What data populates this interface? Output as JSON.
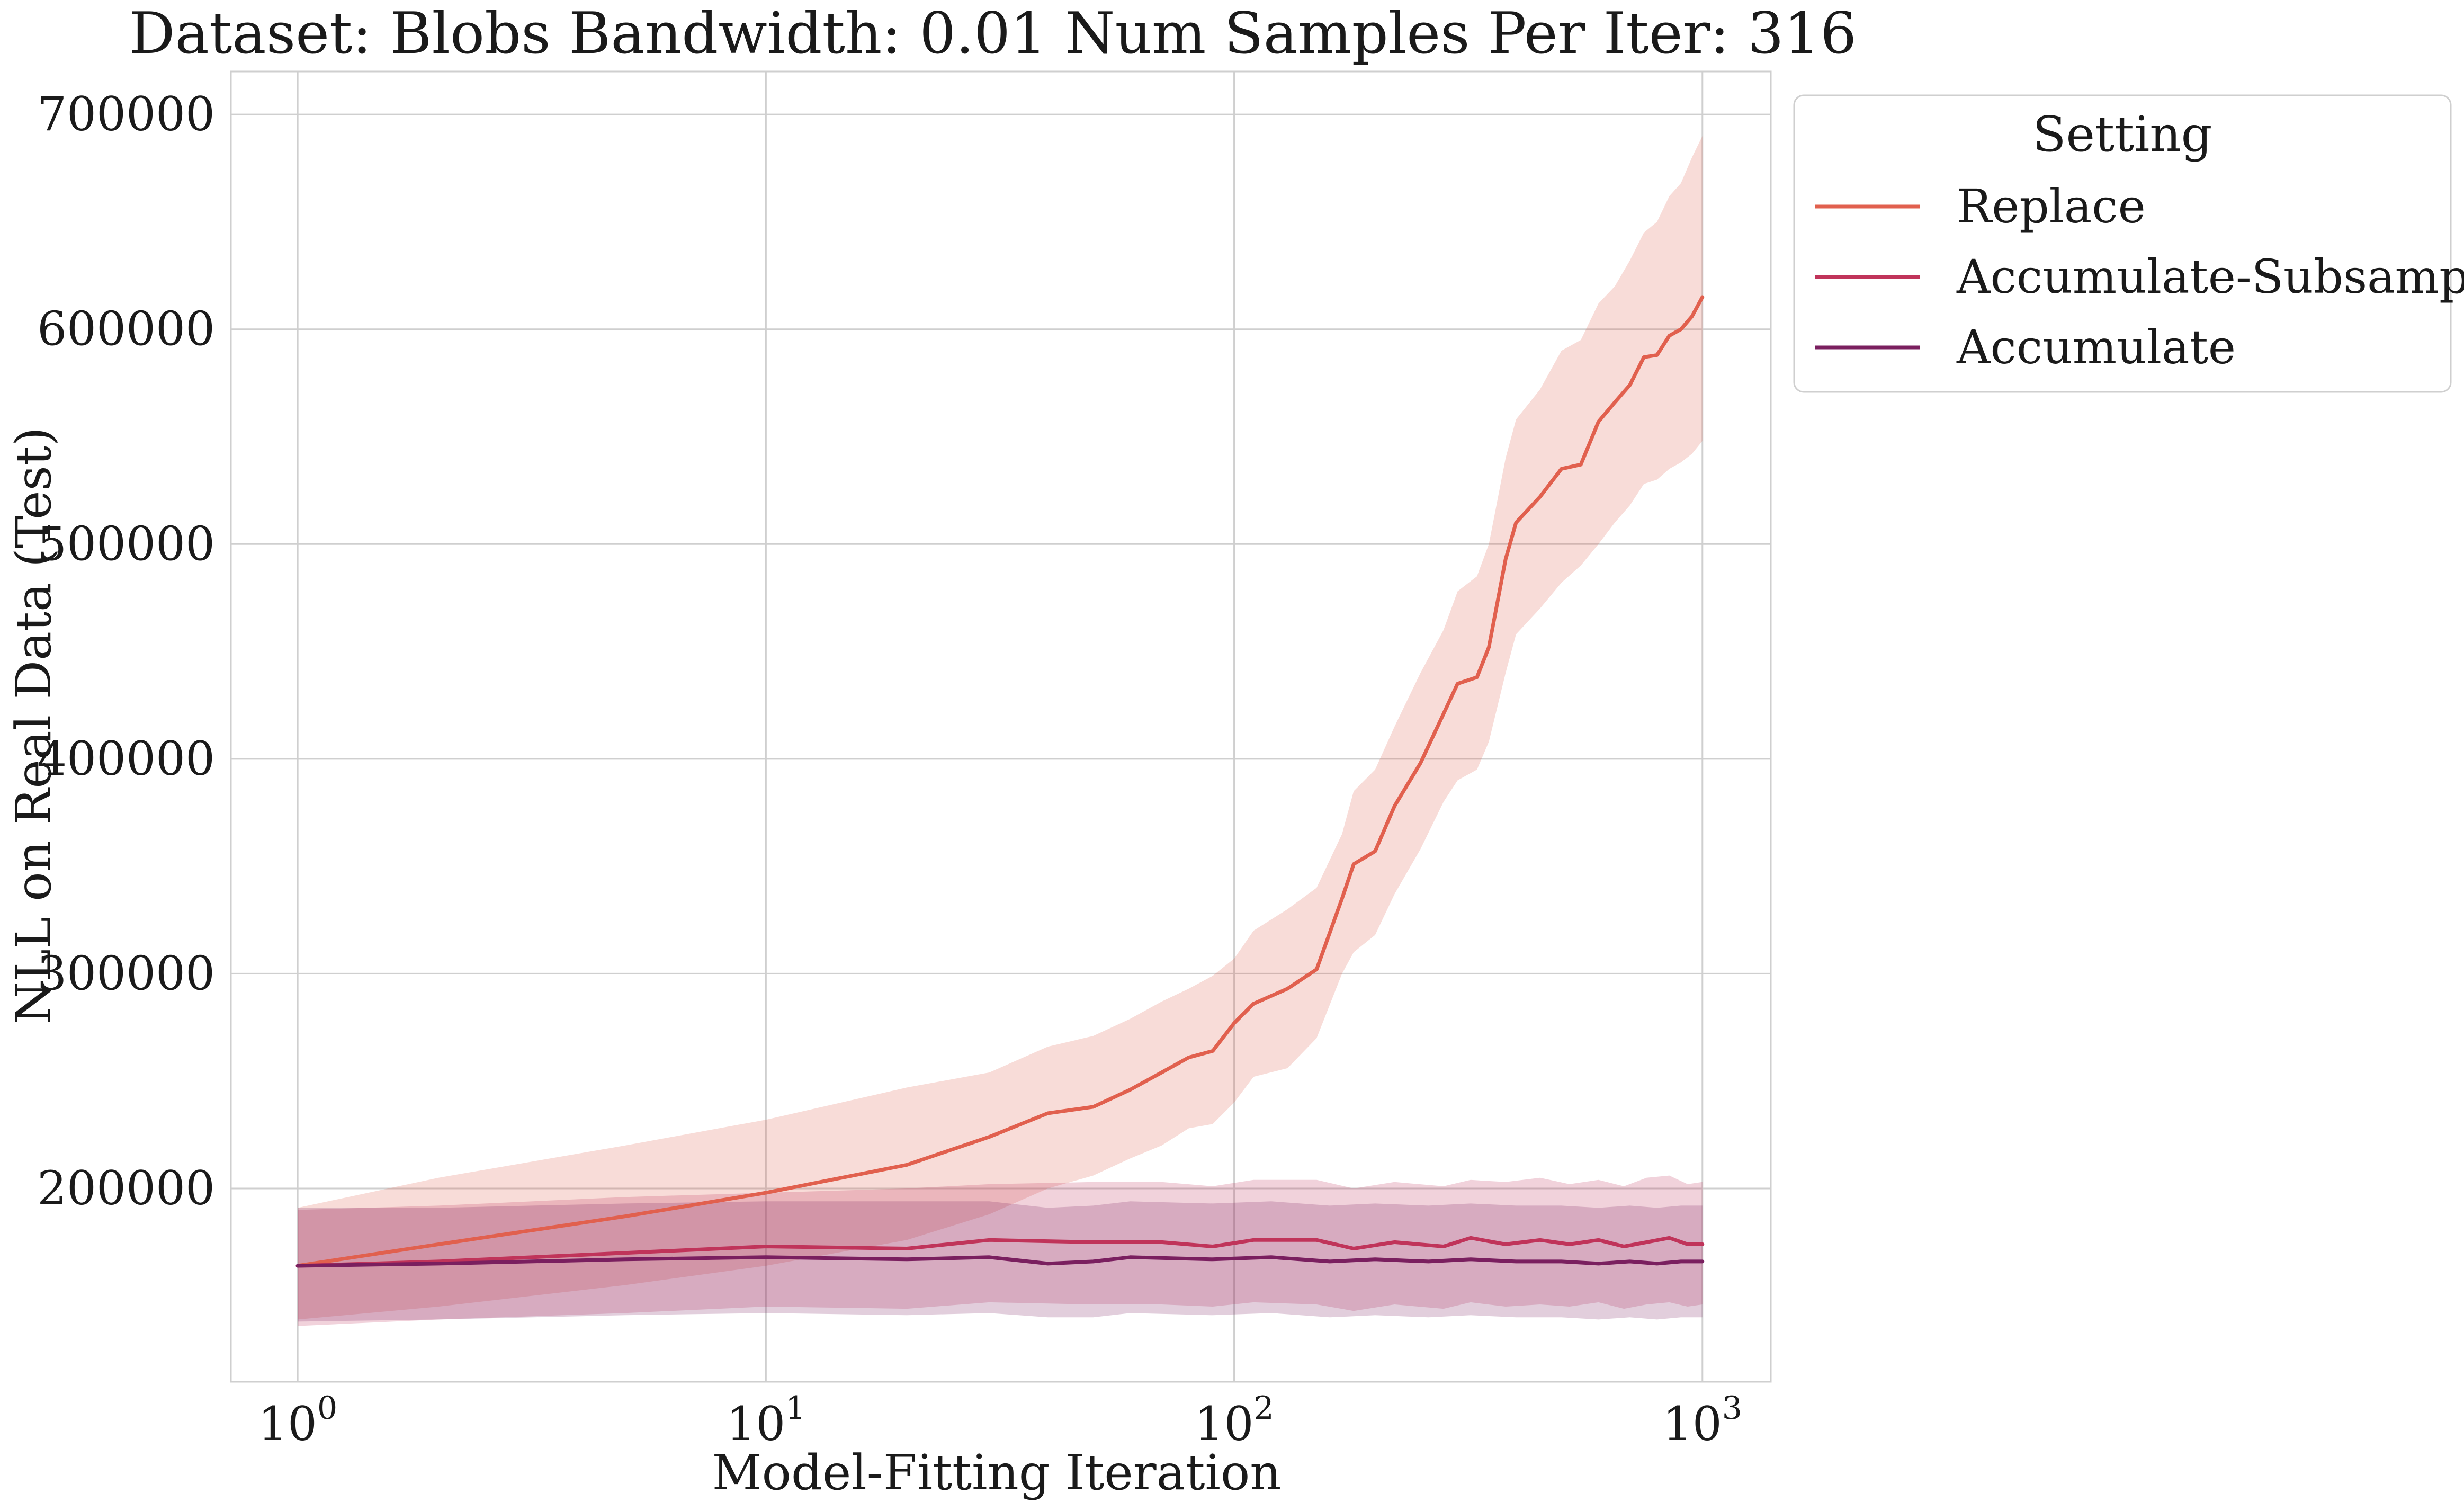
{
  "chart_data": {
    "type": "line",
    "title": "Dataset: Blobs Bandwidth: 0.01 Num Samples Per Iter: 316",
    "xlabel": "Model-Fitting Iteration",
    "ylabel": "NLL on Real Data (Test)",
    "xscale": "log",
    "xlim": [
      0.72,
      1400
    ],
    "ylim": [
      110000,
      720000
    ],
    "grid": true,
    "x_ticks": [
      {
        "value": 1,
        "base": "10",
        "exp": "0"
      },
      {
        "value": 10,
        "base": "10",
        "exp": "1"
      },
      {
        "value": 100,
        "base": "10",
        "exp": "2"
      },
      {
        "value": 1000,
        "base": "10",
        "exp": "3"
      }
    ],
    "y_ticks": [
      {
        "value": 200000,
        "label": "200000"
      },
      {
        "value": 300000,
        "label": "300000"
      },
      {
        "value": 400000,
        "label": "400000"
      },
      {
        "value": 500000,
        "label": "500000"
      },
      {
        "value": 600000,
        "label": "600000"
      },
      {
        "value": 700000,
        "label": "700000"
      }
    ],
    "legend": {
      "title": "Setting",
      "placement": "outside-right-top"
    },
    "series": [
      {
        "name": "Replace",
        "color": "#e1604e",
        "band_opacity": 0.22,
        "points": [
          {
            "x": 1,
            "y": 164000,
            "lo": 139000,
            "hi": 191000
          },
          {
            "x": 2,
            "y": 174000,
            "lo": 145000,
            "hi": 205000
          },
          {
            "x": 5,
            "y": 187000,
            "lo": 155000,
            "hi": 220000
          },
          {
            "x": 10,
            "y": 198000,
            "lo": 164000,
            "hi": 232000
          },
          {
            "x": 20,
            "y": 211000,
            "lo": 176000,
            "hi": 247000
          },
          {
            "x": 30,
            "y": 224000,
            "lo": 188000,
            "hi": 254000
          },
          {
            "x": 40,
            "y": 235000,
            "lo": 200000,
            "hi": 266000
          },
          {
            "x": 50,
            "y": 238000,
            "lo": 206000,
            "hi": 271000
          },
          {
            "x": 60,
            "y": 246000,
            "lo": 214000,
            "hi": 279000
          },
          {
            "x": 70,
            "y": 254000,
            "lo": 220000,
            "hi": 287000
          },
          {
            "x": 80,
            "y": 261000,
            "lo": 228000,
            "hi": 293000
          },
          {
            "x": 90,
            "y": 264000,
            "lo": 230000,
            "hi": 299000
          },
          {
            "x": 100,
            "y": 277000,
            "lo": 240000,
            "hi": 307000
          },
          {
            "x": 110,
            "y": 286000,
            "lo": 252000,
            "hi": 320000
          },
          {
            "x": 130,
            "y": 293000,
            "lo": 256000,
            "hi": 330000
          },
          {
            "x": 150,
            "y": 302000,
            "lo": 270000,
            "hi": 340000
          },
          {
            "x": 170,
            "y": 335000,
            "lo": 300000,
            "hi": 365000
          },
          {
            "x": 180,
            "y": 351000,
            "lo": 310000,
            "hi": 385000
          },
          {
            "x": 200,
            "y": 357000,
            "lo": 318000,
            "hi": 395000
          },
          {
            "x": 220,
            "y": 378000,
            "lo": 337000,
            "hi": 415000
          },
          {
            "x": 250,
            "y": 398000,
            "lo": 358000,
            "hi": 440000
          },
          {
            "x": 280,
            "y": 421000,
            "lo": 380000,
            "hi": 460000
          },
          {
            "x": 300,
            "y": 435000,
            "lo": 390000,
            "hi": 478000
          },
          {
            "x": 330,
            "y": 438000,
            "lo": 395000,
            "hi": 485000
          },
          {
            "x": 350,
            "y": 452000,
            "lo": 408000,
            "hi": 500000
          },
          {
            "x": 380,
            "y": 493000,
            "lo": 440000,
            "hi": 540000
          },
          {
            "x": 400,
            "y": 510000,
            "lo": 458000,
            "hi": 558000
          },
          {
            "x": 450,
            "y": 522000,
            "lo": 470000,
            "hi": 572000
          },
          {
            "x": 500,
            "y": 535000,
            "lo": 482000,
            "hi": 590000
          },
          {
            "x": 550,
            "y": 537000,
            "lo": 490000,
            "hi": 595000
          },
          {
            "x": 600,
            "y": 557000,
            "lo": 500000,
            "hi": 612000
          },
          {
            "x": 650,
            "y": 566000,
            "lo": 510000,
            "hi": 620000
          },
          {
            "x": 700,
            "y": 574000,
            "lo": 518000,
            "hi": 632000
          },
          {
            "x": 750,
            "y": 587000,
            "lo": 528000,
            "hi": 645000
          },
          {
            "x": 800,
            "y": 588000,
            "lo": 530000,
            "hi": 650000
          },
          {
            "x": 850,
            "y": 597000,
            "lo": 535000,
            "hi": 662000
          },
          {
            "x": 900,
            "y": 600000,
            "lo": 538000,
            "hi": 668000
          },
          {
            "x": 950,
            "y": 606000,
            "lo": 542000,
            "hi": 680000
          },
          {
            "x": 1000,
            "y": 615000,
            "lo": 548000,
            "hi": 690000
          }
        ]
      },
      {
        "name": "Accumulate-Subsample",
        "color": "#c0345a",
        "band_opacity": 0.22,
        "points": [
          {
            "x": 1,
            "y": 164000,
            "lo": 136000,
            "hi": 190000
          },
          {
            "x": 2,
            "y": 166000,
            "lo": 139000,
            "hi": 192000
          },
          {
            "x": 5,
            "y": 170000,
            "lo": 142000,
            "hi": 196000
          },
          {
            "x": 10,
            "y": 173000,
            "lo": 145000,
            "hi": 198000
          },
          {
            "x": 20,
            "y": 172000,
            "lo": 144000,
            "hi": 200000
          },
          {
            "x": 30,
            "y": 176000,
            "lo": 147000,
            "hi": 202000
          },
          {
            "x": 50,
            "y": 175000,
            "lo": 146000,
            "hi": 203000
          },
          {
            "x": 70,
            "y": 175000,
            "lo": 146000,
            "hi": 203000
          },
          {
            "x": 90,
            "y": 173000,
            "lo": 145000,
            "hi": 201000
          },
          {
            "x": 110,
            "y": 176000,
            "lo": 147000,
            "hi": 204000
          },
          {
            "x": 150,
            "y": 176000,
            "lo": 146000,
            "hi": 204000
          },
          {
            "x": 180,
            "y": 172000,
            "lo": 143000,
            "hi": 200000
          },
          {
            "x": 220,
            "y": 175000,
            "lo": 146000,
            "hi": 203000
          },
          {
            "x": 280,
            "y": 173000,
            "lo": 144000,
            "hi": 201000
          },
          {
            "x": 320,
            "y": 177000,
            "lo": 147000,
            "hi": 204000
          },
          {
            "x": 380,
            "y": 174000,
            "lo": 145000,
            "hi": 203000
          },
          {
            "x": 450,
            "y": 176000,
            "lo": 146000,
            "hi": 205000
          },
          {
            "x": 520,
            "y": 174000,
            "lo": 145000,
            "hi": 202000
          },
          {
            "x": 600,
            "y": 176000,
            "lo": 147000,
            "hi": 204000
          },
          {
            "x": 680,
            "y": 173000,
            "lo": 144000,
            "hi": 201000
          },
          {
            "x": 760,
            "y": 175000,
            "lo": 146000,
            "hi": 205000
          },
          {
            "x": 850,
            "y": 177000,
            "lo": 147000,
            "hi": 206000
          },
          {
            "x": 930,
            "y": 174000,
            "lo": 145000,
            "hi": 202000
          },
          {
            "x": 1000,
            "y": 174000,
            "lo": 146000,
            "hi": 203000
          }
        ]
      },
      {
        "name": "Accumulate",
        "color": "#7a1f5f",
        "band_opacity": 0.22,
        "points": [
          {
            "x": 1,
            "y": 164000,
            "lo": 138000,
            "hi": 191000
          },
          {
            "x": 2,
            "y": 165000,
            "lo": 139000,
            "hi": 191000
          },
          {
            "x": 5,
            "y": 167000,
            "lo": 141000,
            "hi": 193000
          },
          {
            "x": 10,
            "y": 168000,
            "lo": 142000,
            "hi": 194000
          },
          {
            "x": 20,
            "y": 167000,
            "lo": 141000,
            "hi": 194000
          },
          {
            "x": 30,
            "y": 168000,
            "lo": 142000,
            "hi": 194000
          },
          {
            "x": 40,
            "y": 165000,
            "lo": 140000,
            "hi": 191000
          },
          {
            "x": 50,
            "y": 166000,
            "lo": 140000,
            "hi": 192000
          },
          {
            "x": 60,
            "y": 168000,
            "lo": 142000,
            "hi": 194000
          },
          {
            "x": 90,
            "y": 167000,
            "lo": 141000,
            "hi": 193000
          },
          {
            "x": 120,
            "y": 168000,
            "lo": 142000,
            "hi": 194000
          },
          {
            "x": 160,
            "y": 166000,
            "lo": 140000,
            "hi": 192000
          },
          {
            "x": 200,
            "y": 167000,
            "lo": 141000,
            "hi": 193000
          },
          {
            "x": 260,
            "y": 166000,
            "lo": 140000,
            "hi": 192000
          },
          {
            "x": 320,
            "y": 167000,
            "lo": 141000,
            "hi": 193000
          },
          {
            "x": 400,
            "y": 166000,
            "lo": 140000,
            "hi": 192000
          },
          {
            "x": 500,
            "y": 166000,
            "lo": 140000,
            "hi": 192000
          },
          {
            "x": 600,
            "y": 165000,
            "lo": 139000,
            "hi": 191000
          },
          {
            "x": 700,
            "y": 166000,
            "lo": 140000,
            "hi": 192000
          },
          {
            "x": 800,
            "y": 165000,
            "lo": 139000,
            "hi": 191000
          },
          {
            "x": 900,
            "y": 166000,
            "lo": 140000,
            "hi": 192000
          },
          {
            "x": 1000,
            "y": 166000,
            "lo": 140000,
            "hi": 192000
          }
        ]
      }
    ]
  }
}
